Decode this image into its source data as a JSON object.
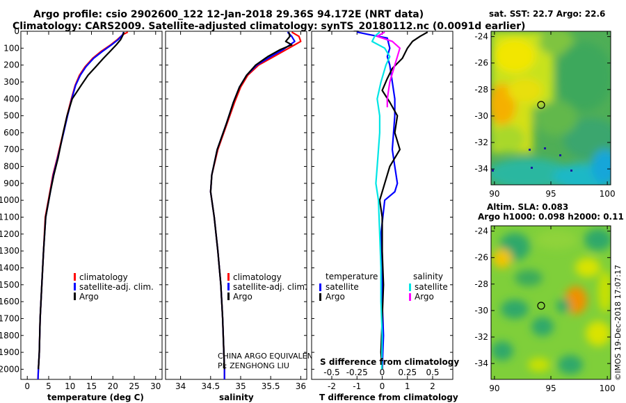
{
  "header": {
    "title_line1": "Argo profile: csio 2902600_122 12-Jan-2018 29.36S 94.172E (NRT data)",
    "title_line2": "Climatology: CARS2009. Satellite-adjusted climatology: synTS_20180112.nc (0.0091d earlier)"
  },
  "colors": {
    "climatology": "#ff0000",
    "satellite": "#0000ff",
    "argo": "#000000",
    "satellite_salinity": "#00e5e5",
    "argo_salinity": "#ff00ff"
  },
  "depth_ticks": [
    "0",
    "100",
    "200",
    "300",
    "400",
    "500",
    "600",
    "700",
    "800",
    "900",
    "1000",
    "1100",
    "1200",
    "1300",
    "1400",
    "1500",
    "1600",
    "1700",
    "1800",
    "1900",
    "2000"
  ],
  "panels": {
    "temperature": {
      "xlabel": "temperature (deg C)",
      "xticks": [
        "0",
        "5",
        "10",
        "15",
        "20",
        "25",
        "30"
      ],
      "legend": [
        "climatology",
        "satellite-adj. clim.",
        "Argo"
      ]
    },
    "salinity": {
      "xlabel": "salinity",
      "xticks": [
        "34",
        "34.5",
        "35",
        "35.5",
        "36"
      ],
      "legend": [
        "climatology",
        "satellite-adj. clim.",
        "Argo"
      ],
      "note_line1": "CHINA ARGO EQUIVALENT",
      "note_line2": "PI: ZENGHONG LIU"
    },
    "difference": {
      "xlabel": "T difference from climatology",
      "s_label": "S difference from climatology",
      "xticks_t": [
        "-2",
        "-1",
        "0",
        "1",
        "2"
      ],
      "xticks_s": [
        "-0.5",
        "-0.25",
        "0",
        "0.25",
        "0.5"
      ],
      "legend_temp_title": "temperature",
      "legend_temp": [
        "satellite",
        "Argo"
      ],
      "legend_sal_title": "salinity",
      "legend_sal": [
        "satellite",
        "Argo"
      ]
    }
  },
  "maps": {
    "sst": {
      "label": "sat. SST: 22.7 Argo: 22.6",
      "yticks": [
        "-24",
        "-26",
        "-28",
        "-30",
        "-32",
        "-34"
      ],
      "xticks": [
        "90",
        "95",
        "100"
      ]
    },
    "sla": {
      "label_line1": "Altim. SLA: 0.083",
      "label_line2": "Argo h1000: 0.098 h2000: 0.11",
      "yticks": [
        "-24",
        "-26",
        "-28",
        "-30",
        "-32",
        "-34"
      ],
      "xticks": [
        "90",
        "95",
        "100"
      ]
    }
  },
  "credit": "©IMOS 19-Dec-2018 17:07:17",
  "chart_data": [
    {
      "type": "line",
      "xlabel": "temperature (deg C)",
      "ylabel": "",
      "xlim": [
        -1.5,
        31.5
      ],
      "ylim": [
        2060,
        0
      ],
      "series": [
        {
          "name": "climatology",
          "color": "#ff0000",
          "x": [
            23.5,
            22.3,
            21.0,
            19.5,
            17.2,
            15.3,
            13.5,
            12.2,
            11.2,
            10.3,
            9.3,
            8.4,
            7.0,
            6.0,
            5.3,
            4.2,
            3.8,
            3.4,
            3.0,
            2.8,
            2.6,
            2.5
          ],
          "y": [
            5,
            20,
            50,
            80,
            120,
            160,
            210,
            260,
            320,
            400,
            500,
            600,
            750,
            850,
            950,
            1100,
            1300,
            1500,
            1700,
            1900,
            2000,
            2060
          ]
        },
        {
          "name": "satellite-adj. clim.",
          "color": "#0000ff",
          "x": [
            22.5,
            22.3,
            21.2,
            19.7,
            17.5,
            15.5,
            13.7,
            12.4,
            11.3,
            10.4,
            9.4,
            8.5,
            7.1,
            6.1,
            5.4,
            4.3,
            3.8,
            3.4,
            3.0,
            2.8,
            2.6,
            2.5
          ],
          "y": [
            5,
            20,
            50,
            80,
            120,
            160,
            210,
            260,
            320,
            400,
            500,
            600,
            750,
            850,
            950,
            1100,
            1300,
            1500,
            1700,
            1900,
            2000,
            2060
          ]
        },
        {
          "name": "Argo",
          "color": "#000000",
          "x": [
            22.6,
            22.4,
            21.8,
            20.8,
            19.3,
            17.8,
            16.0,
            14.2,
            12.6,
            10.5,
            9.3,
            8.4,
            7.2,
            6.2,
            5.4,
            4.3,
            3.8,
            3.4,
            3.0,
            2.8,
            2.6
          ],
          "y": [
            5,
            20,
            50,
            80,
            120,
            160,
            210,
            260,
            320,
            400,
            500,
            600,
            750,
            850,
            950,
            1100,
            1300,
            1500,
            1700,
            1900,
            2000
          ]
        }
      ]
    },
    {
      "type": "line",
      "xlabel": "salinity",
      "ylabel": "",
      "xlim": [
        33.75,
        36.1
      ],
      "ylim": [
        2060,
        0
      ],
      "series": [
        {
          "name": "climatology",
          "color": "#ff0000",
          "x": [
            35.85,
            35.97,
            36.0,
            35.9,
            35.75,
            35.55,
            35.3,
            35.12,
            35.0,
            34.9,
            34.77,
            34.62,
            34.52,
            34.5,
            34.56,
            34.62,
            34.67,
            34.7,
            34.72,
            34.73,
            34.73
          ],
          "y": [
            5,
            30,
            60,
            80,
            110,
            150,
            200,
            260,
            330,
            420,
            550,
            700,
            850,
            950,
            1100,
            1300,
            1500,
            1700,
            1900,
            2000,
            2060
          ]
        },
        {
          "name": "satellite-adj. clim.",
          "color": "#0000ff",
          "x": [
            35.78,
            35.85,
            35.9,
            35.82,
            35.7,
            35.5,
            35.27,
            35.1,
            34.98,
            34.88,
            34.76,
            34.61,
            34.52,
            34.5,
            34.56,
            34.62,
            34.67,
            34.7,
            34.72,
            34.73,
            34.73
          ],
          "y": [
            5,
            30,
            60,
            80,
            110,
            150,
            200,
            260,
            330,
            420,
            550,
            700,
            850,
            950,
            1100,
            1300,
            1500,
            1700,
            1900,
            2000,
            2060
          ]
        },
        {
          "name": "Argo",
          "color": "#000000",
          "x": [
            35.8,
            35.82,
            35.75,
            35.85,
            35.65,
            35.45,
            35.25,
            35.1,
            34.98,
            34.88,
            34.76,
            34.61,
            34.52,
            34.5,
            34.56,
            34.62,
            34.67,
            34.7,
            34.72,
            34.73
          ],
          "y": [
            5,
            30,
            60,
            80,
            110,
            150,
            200,
            260,
            330,
            420,
            550,
            700,
            850,
            950,
            1100,
            1300,
            1500,
            1700,
            1900,
            2000
          ]
        }
      ]
    },
    {
      "type": "line",
      "xlabel": "T difference from climatology",
      "ylabel": "",
      "xlim": [
        -2.8,
        2.8
      ],
      "ylim": [
        2060,
        0
      ],
      "series": [
        {
          "name": "temperature satellite",
          "color": "#0000ff",
          "x": [
            -1.0,
            -0.5,
            0.2,
            0.3,
            0.2,
            0.3,
            0.4,
            0.5,
            0.5,
            0.45,
            0.4,
            0.5,
            0.6,
            0.5,
            0.1,
            -0.05,
            0.0,
            0.0,
            0.05,
            0.0
          ],
          "y": [
            5,
            20,
            40,
            100,
            150,
            200,
            300,
            400,
            500,
            600,
            700,
            800,
            900,
            950,
            1000,
            1200,
            1400,
            1600,
            1800,
            2000
          ]
        },
        {
          "name": "temperature Argo",
          "color": "#000000",
          "x": [
            1.8,
            1.5,
            1.2,
            1.0,
            0.8,
            0.4,
            0.2,
            0.0,
            0.3,
            0.6,
            0.5,
            0.7,
            0.3,
            0.1,
            -0.1,
            0.0,
            0.0,
            0.05,
            0.0,
            -0.05,
            0.0
          ],
          "y": [
            5,
            30,
            60,
            100,
            160,
            220,
            280,
            350,
            420,
            500,
            600,
            700,
            800,
            900,
            1000,
            1100,
            1300,
            1500,
            1700,
            1900,
            2000
          ]
        },
        {
          "name": "salinity satellite",
          "color": "#00e5e5",
          "x": [
            -0.1,
            -0.3,
            -0.4,
            0.1,
            0.3,
            0.15,
            -0.05,
            -0.2,
            -0.1,
            -0.1,
            -0.15,
            -0.2,
            -0.25,
            -0.15,
            -0.1,
            -0.05,
            -0.05,
            0.0,
            -0.02
          ],
          "y": [
            5,
            30,
            60,
            100,
            150,
            200,
            300,
            400,
            500,
            600,
            700,
            800,
            900,
            1000,
            1200,
            1400,
            1600,
            1800,
            2000
          ]
        },
        {
          "name": "salinity Argo",
          "color": "#ff00ff",
          "x": [
            0.1,
            -0.2,
            0.4,
            0.7,
            0.6,
            0.5,
            0.3,
            0.2,
            0.2
          ],
          "y": [
            5,
            30,
            60,
            100,
            150,
            200,
            300,
            400,
            450
          ]
        }
      ]
    },
    {
      "type": "heatmap",
      "title": "sat. SST: 22.7 Argo: 22.6",
      "xlim": [
        89.7,
        100.3
      ],
      "ylim": [
        -35.2,
        -23.6
      ]
    },
    {
      "type": "heatmap",
      "title": "Altim. SLA: 0.083",
      "xlim": [
        89.7,
        100.3
      ],
      "ylim": [
        -35.2,
        -23.6
      ]
    }
  ]
}
